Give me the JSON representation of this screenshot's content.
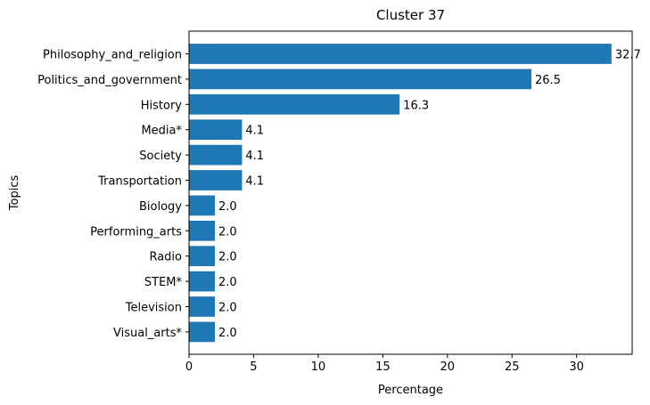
{
  "chart_data": {
    "type": "bar",
    "orientation": "horizontal",
    "title": "Cluster 37",
    "xlabel": "Percentage",
    "ylabel": "Topics",
    "categories": [
      "Philosophy_and_religion",
      "Politics_and_government",
      "History",
      "Media*",
      "Society",
      "Transportation",
      "Biology",
      "Performing_arts",
      "Radio",
      "STEM*",
      "Television",
      "Visual_arts*"
    ],
    "values": [
      32.7,
      26.5,
      16.3,
      4.1,
      4.1,
      4.1,
      2.0,
      2.0,
      2.0,
      2.0,
      2.0,
      2.0
    ],
    "data_labels": [
      "32.7",
      "26.5",
      "16.3",
      "4.1",
      "4.1",
      "4.1",
      "2.0",
      "2.0",
      "2.0",
      "2.0",
      "2.0",
      "2.0"
    ],
    "xlim": [
      0,
      34.3
    ],
    "xticks": [
      0,
      5,
      10,
      15,
      20,
      25,
      30
    ],
    "grid": false,
    "color": "#1f77b4"
  }
}
